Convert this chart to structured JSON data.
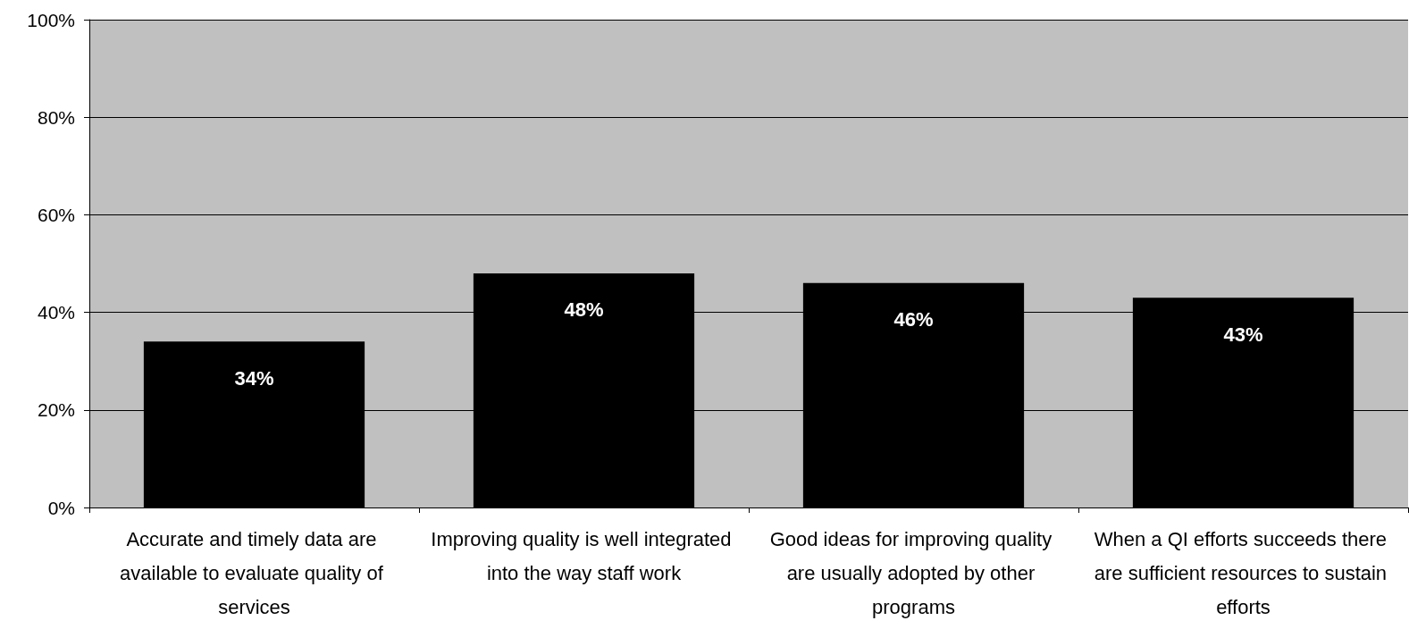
{
  "chart_data": {
    "type": "bar",
    "categories": [
      "Accurate and timely data are available to evaluate quality of services",
      "Improving quality is well integrated into the way staff work",
      "Good ideas for improving quality are usually adopted by other programs",
      "When a QI efforts succeeds there are sufficient resources to sustain efforts"
    ],
    "values": [
      34,
      48,
      46,
      43
    ],
    "value_labels": [
      "34%",
      "48%",
      "46%",
      "43%"
    ],
    "color": "#000000",
    "ylim": [
      0,
      100
    ],
    "yticks": [
      {
        "value": 0,
        "label": "0%"
      },
      {
        "value": 20,
        "label": "20%"
      },
      {
        "value": 40,
        "label": "40%"
      },
      {
        "value": 60,
        "label": "60%"
      },
      {
        "value": 80,
        "label": "80%"
      },
      {
        "value": 100,
        "label": "100%"
      }
    ],
    "grid": "y"
  }
}
